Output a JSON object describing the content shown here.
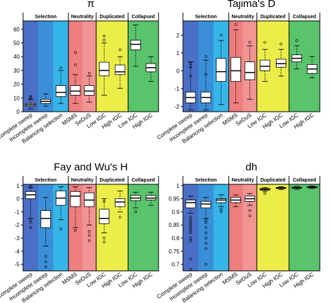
{
  "group_labels": [
    "Selection",
    "Neutrality",
    "Duplicated",
    "Collapsed"
  ],
  "colors": {
    "Complete sweep": "#4a6fc4",
    "Incomplete sweep": "#3a8fd8",
    "Balancing selection": "#36b6e8",
    "MSMS": "#ef7e7e",
    "SeDuS": "#f29494",
    "Low IGC": "#eded4a",
    "High IGC": "#eded4a",
    "Low IGC 2": "#59c46c",
    "High IGC 2": "#59c46c"
  },
  "chart_data": [
    {
      "type": "box",
      "title": "π",
      "categories": [
        "Complete sweep",
        "Incomplete sweep",
        "Balancing selection",
        "MSMS",
        "SeDuS",
        "Low IGC",
        "High IGC",
        "Low IGC",
        "High IGC"
      ],
      "yticks": [
        0,
        10,
        20,
        30,
        40,
        50,
        60
      ],
      "ylim": [
        0,
        66
      ],
      "boxes": [
        {
          "wlo": 2,
          "q1": 4,
          "med": 5,
          "q3": 6,
          "whi": 9,
          "out": [
            10,
            11
          ]
        },
        {
          "wlo": 4,
          "q1": 6,
          "med": 7.5,
          "q3": 9,
          "whi": 13,
          "out": []
        },
        {
          "wlo": 6,
          "q1": 11,
          "med": 14,
          "q3": 19,
          "whi": 30,
          "out": [
            32
          ]
        },
        {
          "wlo": 6,
          "q1": 12,
          "med": 15,
          "q3": 19,
          "whi": 27,
          "out": [
            34,
            43
          ]
        },
        {
          "wlo": 7,
          "q1": 12,
          "med": 15,
          "q3": 19,
          "whi": 26,
          "out": [
            28
          ]
        },
        {
          "wlo": 12,
          "q1": 26,
          "med": 30,
          "q3": 36,
          "whi": 50,
          "out": [
            52,
            55
          ]
        },
        {
          "wlo": 17,
          "q1": 27,
          "med": 29,
          "q3": 34,
          "whi": 40,
          "out": [
            45
          ]
        },
        {
          "wlo": 33,
          "q1": 45,
          "med": 49,
          "q3": 52,
          "whi": 63,
          "out": []
        },
        {
          "wlo": 22,
          "q1": 29,
          "med": 32,
          "q3": 35,
          "whi": 40,
          "out": []
        }
      ]
    },
    {
      "type": "box",
      "title": "Tajima's D",
      "categories": [
        "Complete sweep",
        "Incomplete sweep",
        "Balancing selection",
        "MSMS",
        "SeDuS",
        "Low IGC",
        "High IGC",
        "Low IGC",
        "High IGC"
      ],
      "yticks": [
        -2,
        -1,
        0,
        1,
        2
      ],
      "ylim": [
        -2.3,
        2.8
      ],
      "boxes": [
        {
          "wlo": -2.2,
          "q1": -1.8,
          "med": -1.5,
          "q3": -1.2,
          "whi": 0.5,
          "out": [
            0.4,
            0.2,
            -0.3
          ]
        },
        {
          "wlo": -2.2,
          "q1": -1.8,
          "med": -1.5,
          "q3": -1.2,
          "whi": 0.6,
          "out": [
            0.8,
            -0.2
          ]
        },
        {
          "wlo": -1.9,
          "q1": -0.6,
          "med": -0.05,
          "q3": 0.7,
          "whi": 1.7,
          "out": [
            2.0
          ]
        },
        {
          "wlo": -1.8,
          "q1": -0.6,
          "med": 0.0,
          "q3": 0.75,
          "whi": 2.3,
          "out": [
            2.6
          ]
        },
        {
          "wlo": -1.6,
          "q1": -0.5,
          "med": -0.1,
          "q3": 0.5,
          "whi": 1.4,
          "out": [
            1.6
          ]
        },
        {
          "wlo": -0.6,
          "q1": 0.0,
          "med": 0.25,
          "q3": 0.6,
          "whi": 1.2,
          "out": [
            1.6
          ]
        },
        {
          "wlo": -0.3,
          "q1": 0.2,
          "med": 0.4,
          "q3": 0.65,
          "whi": 1.2,
          "out": [
            1.5
          ]
        },
        {
          "wlo": 0.1,
          "q1": 0.5,
          "med": 0.7,
          "q3": 0.9,
          "whi": 1.4,
          "out": [
            1.7
          ]
        },
        {
          "wlo": -0.4,
          "q1": -0.15,
          "med": 0.1,
          "q3": 0.35,
          "whi": 0.8,
          "out": []
        }
      ]
    },
    {
      "type": "box",
      "title": "Fay and Wu's H",
      "categories": [
        "Complete sweep",
        "Incomplete sweep",
        "Balancing selection",
        "MSMS",
        "SeDuS",
        "Low IGC",
        "High IGC",
        "Low IGC",
        "High IGC"
      ],
      "yticks": [
        1,
        0,
        -1,
        -2,
        -3,
        -4,
        -5
      ],
      "ylim": [
        -5.5,
        1.1
      ],
      "boxes": [
        {
          "wlo": -1.5,
          "q1": 0.0,
          "med": 0.3,
          "q3": 0.55,
          "whi": 0.85,
          "out": [
            -2.2,
            -1.8,
            -1.6,
            0.95
          ]
        },
        {
          "wlo": -3.6,
          "q1": -2.2,
          "med": -1.5,
          "q3": -0.9,
          "whi": 0.1,
          "out": [
            -5.2,
            -4.8,
            -4.4
          ]
        },
        {
          "wlo": -1.6,
          "q1": -0.5,
          "med": 0.05,
          "q3": 0.6,
          "whi": 0.9,
          "out": [
            -2.3
          ]
        },
        {
          "wlo": -2.2,
          "q1": -0.6,
          "med": 0.2,
          "q3": 0.55,
          "whi": 0.9,
          "out": [
            -2.4
          ]
        },
        {
          "wlo": -2.0,
          "q1": -0.6,
          "med": -0.1,
          "q3": 0.45,
          "whi": 0.85,
          "out": [
            -2.5,
            -2.8,
            -3.2
          ]
        },
        {
          "wlo": -2.6,
          "q1": -1.9,
          "med": -1.5,
          "q3": -0.8,
          "whi": 0.0,
          "out": [
            -3.0,
            -3.3,
            -0.2
          ]
        },
        {
          "wlo": -1.0,
          "q1": -0.6,
          "med": -0.25,
          "q3": 0.0,
          "whi": 0.6,
          "out": [
            -1.4
          ]
        },
        {
          "wlo": -0.7,
          "q1": -0.15,
          "med": 0.05,
          "q3": 0.25,
          "whi": 0.5,
          "out": [
            -1.0
          ]
        },
        {
          "wlo": -0.5,
          "q1": -0.1,
          "med": 0.05,
          "q3": 0.25,
          "whi": 0.5,
          "out": []
        }
      ]
    },
    {
      "type": "box",
      "title": "dh",
      "categories": [
        "Complete sweep",
        "Incomplete sweep",
        "Balancing selection",
        "MSMS",
        "SeDuS",
        "Low IGC",
        "High IGC",
        "Low IGC",
        "High IGC"
      ],
      "yticks": [
        1.0,
        0.95,
        0.9,
        0.85,
        0.8,
        0.75,
        0.7
      ],
      "ylim": [
        0.675,
        1.005
      ],
      "boxes": [
        {
          "wlo": 0.895,
          "q1": 0.915,
          "med": 0.935,
          "q3": 0.945,
          "whi": 0.96,
          "out": [
            0.88,
            0.87,
            0.86,
            0.85,
            0.84,
            0.83,
            0.82,
            0.8,
            0.79,
            0.72,
            0.68
          ]
        },
        {
          "wlo": 0.875,
          "q1": 0.915,
          "med": 0.93,
          "q3": 0.94,
          "whi": 0.955,
          "out": [
            0.87,
            0.86,
            0.84,
            0.82,
            0.8,
            0.78,
            0.76,
            0.7
          ]
        },
        {
          "wlo": 0.92,
          "q1": 0.935,
          "med": 0.945,
          "q3": 0.95,
          "whi": 0.965,
          "out": [
            0.91,
            0.9
          ]
        },
        {
          "wlo": 0.92,
          "q1": 0.935,
          "med": 0.945,
          "q3": 0.955,
          "whi": 0.965,
          "out": []
        },
        {
          "wlo": 0.925,
          "q1": 0.94,
          "med": 0.95,
          "q3": 0.96,
          "whi": 0.97,
          "out": [
            0.905,
            0.885
          ]
        },
        {
          "wlo": 0.978,
          "q1": 0.983,
          "med": 0.986,
          "q3": 0.989,
          "whi": 0.993,
          "out": [
            0.97
          ]
        },
        {
          "wlo": 0.985,
          "q1": 0.989,
          "med": 0.991,
          "q3": 0.993,
          "whi": 0.996,
          "out": []
        },
        {
          "wlo": 0.986,
          "q1": 0.99,
          "med": 0.992,
          "q3": 0.994,
          "whi": 0.997,
          "out": []
        },
        {
          "wlo": 0.989,
          "q1": 0.992,
          "med": 0.994,
          "q3": 0.996,
          "whi": 0.998,
          "out": []
        }
      ]
    }
  ]
}
